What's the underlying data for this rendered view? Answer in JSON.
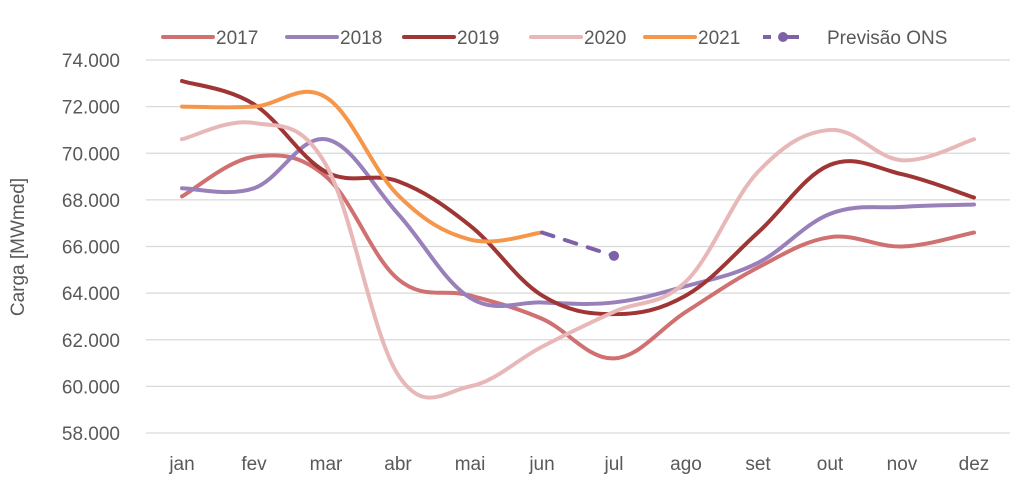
{
  "chart_data": {
    "type": "line",
    "title": "",
    "xlabel": "",
    "ylabel": "Carga [MWmed]",
    "categories": [
      "jan",
      "fev",
      "mar",
      "abr",
      "mai",
      "jun",
      "jul",
      "ago",
      "set",
      "out",
      "nov",
      "dez"
    ],
    "ylim": [
      58000,
      74000
    ],
    "yticks": [
      58000,
      60000,
      62000,
      64000,
      66000,
      68000,
      70000,
      72000,
      74000
    ],
    "ytick_labels": [
      "58.000",
      "60.000",
      "62.000",
      "64.000",
      "66.000",
      "68.000",
      "70.000",
      "72.000",
      "74.000"
    ],
    "grid": true,
    "legend_position": "top",
    "smoothed": true,
    "series": [
      {
        "name": "2017",
        "color": "#d07070",
        "dashed": false,
        "values": [
          68150,
          69850,
          69000,
          64600,
          63900,
          62900,
          61200,
          63200,
          65100,
          66400,
          66000,
          66600
        ]
      },
      {
        "name": "2018",
        "color": "#9a80ba",
        "dashed": false,
        "values": [
          68500,
          68500,
          70600,
          67400,
          63800,
          63600,
          63600,
          64300,
          65300,
          67400,
          67700,
          67800
        ]
      },
      {
        "name": "2019",
        "color": "#a03535",
        "dashed": false,
        "values": [
          73100,
          72100,
          69200,
          68800,
          66900,
          63900,
          63100,
          63900,
          66600,
          69500,
          69100,
          68100
        ]
      },
      {
        "name": "2020",
        "color": "#e8b8b8",
        "dashed": false,
        "values": [
          70600,
          71300,
          69500,
          60500,
          60000,
          61700,
          63200,
          64500,
          69200,
          71000,
          69700,
          70600
        ]
      },
      {
        "name": "2021",
        "color": "#f5964a",
        "dashed": false,
        "values": [
          72000,
          72000,
          72400,
          68200,
          66300,
          66600,
          null,
          null,
          null,
          null,
          null,
          null
        ]
      },
      {
        "name": "Previsão ONS",
        "color": "#7e62a8",
        "dashed": true,
        "end_marker": true,
        "values": [
          null,
          null,
          null,
          null,
          null,
          66600,
          65600,
          null,
          null,
          null,
          null,
          null
        ]
      }
    ]
  }
}
